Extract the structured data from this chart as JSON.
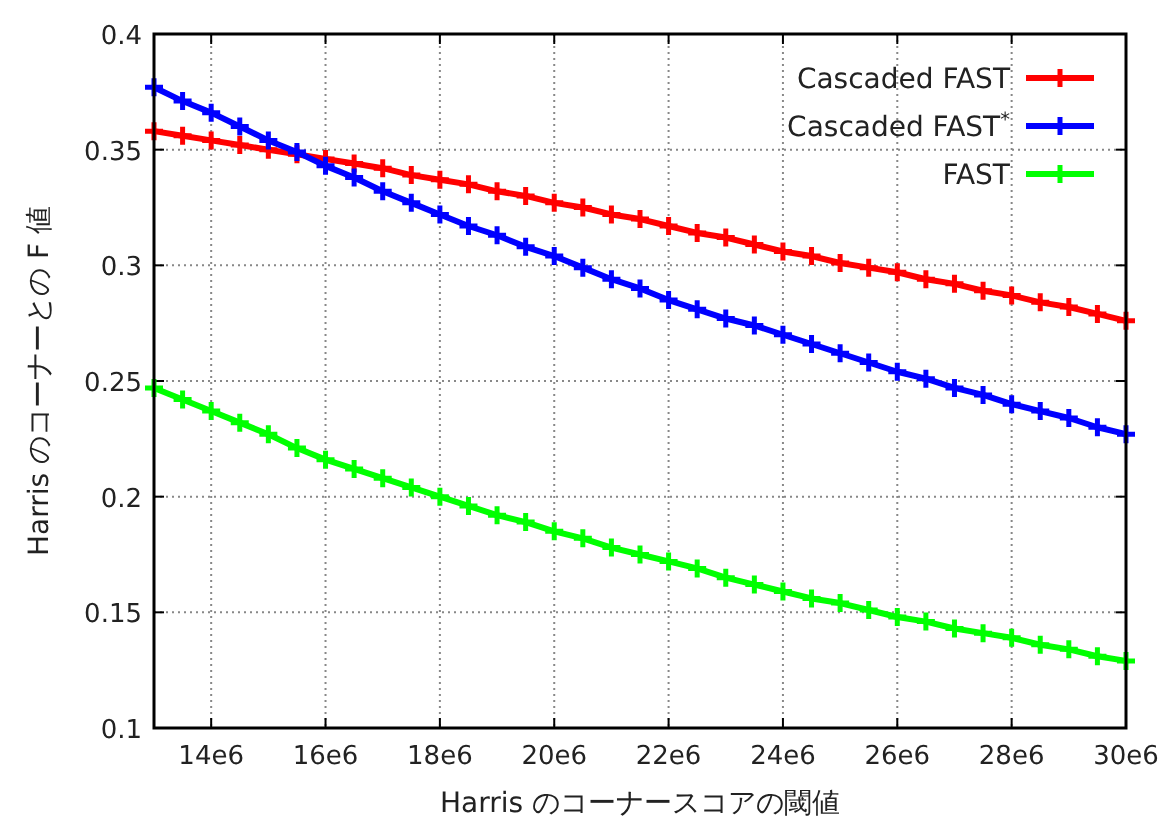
{
  "chart_data": {
    "type": "line",
    "xlabel": "Harris のコーナースコアの閾値",
    "ylabel": "Harris のコーナーとの F 値",
    "x": [
      13000000,
      13500000,
      14000000,
      14500000,
      15000000,
      15500000,
      16000000,
      16500000,
      17000000,
      17500000,
      18000000,
      18500000,
      19000000,
      19500000,
      20000000,
      20500000,
      21000000,
      21500000,
      22000000,
      22500000,
      23000000,
      23500000,
      24000000,
      24500000,
      25000000,
      25500000,
      26000000,
      26500000,
      27000000,
      27500000,
      28000000,
      28500000,
      29000000,
      29500000,
      30000000
    ],
    "series": [
      {
        "name": "Cascaded FAST",
        "color": "#ff0000",
        "values": [
          0.358,
          0.356,
          0.354,
          0.352,
          0.35,
          0.348,
          0.346,
          0.344,
          0.342,
          0.339,
          0.337,
          0.335,
          0.332,
          0.33,
          0.327,
          0.325,
          0.322,
          0.32,
          0.317,
          0.314,
          0.312,
          0.309,
          0.306,
          0.304,
          0.301,
          0.299,
          0.297,
          0.294,
          0.292,
          0.289,
          0.287,
          0.284,
          0.282,
          0.279,
          0.276
        ]
      },
      {
        "name": "Cascaded FAST$^{*}$",
        "color": "#0000ff",
        "values": [
          0.377,
          0.371,
          0.366,
          0.36,
          0.354,
          0.349,
          0.343,
          0.338,
          0.332,
          0.327,
          0.322,
          0.317,
          0.313,
          0.308,
          0.304,
          0.299,
          0.294,
          0.29,
          0.285,
          0.281,
          0.277,
          0.274,
          0.27,
          0.266,
          0.262,
          0.258,
          0.254,
          0.251,
          0.247,
          0.244,
          0.24,
          0.237,
          0.234,
          0.23,
          0.227
        ]
      },
      {
        "name": "FAST",
        "color": "#00ff00",
        "values": [
          0.247,
          0.242,
          0.237,
          0.232,
          0.227,
          0.221,
          0.216,
          0.212,
          0.208,
          0.204,
          0.2,
          0.196,
          0.192,
          0.189,
          0.185,
          0.182,
          0.178,
          0.175,
          0.172,
          0.169,
          0.165,
          0.162,
          0.159,
          0.156,
          0.154,
          0.151,
          0.148,
          0.146,
          0.143,
          0.141,
          0.139,
          0.136,
          0.134,
          0.131,
          0.129
        ]
      }
    ],
    "xlim": [
      13000000,
      30000000
    ],
    "xticks": [
      {
        "value": 14000000,
        "label": "14e6"
      },
      {
        "value": 16000000,
        "label": "16e6"
      },
      {
        "value": 18000000,
        "label": "18e6"
      },
      {
        "value": 20000000,
        "label": "20e6"
      },
      {
        "value": 22000000,
        "label": "22e6"
      },
      {
        "value": 24000000,
        "label": "24e6"
      },
      {
        "value": 26000000,
        "label": "26e6"
      },
      {
        "value": 28000000,
        "label": "28e6"
      },
      {
        "value": 30000000,
        "label": "30e6"
      }
    ],
    "ylim": [
      0.1,
      0.4
    ],
    "yticks": [
      0.1,
      0.15,
      0.2,
      0.25,
      0.3,
      0.35,
      0.4
    ],
    "grid": true,
    "legend": "top right",
    "marker": "cross",
    "line_style": "solid"
  }
}
